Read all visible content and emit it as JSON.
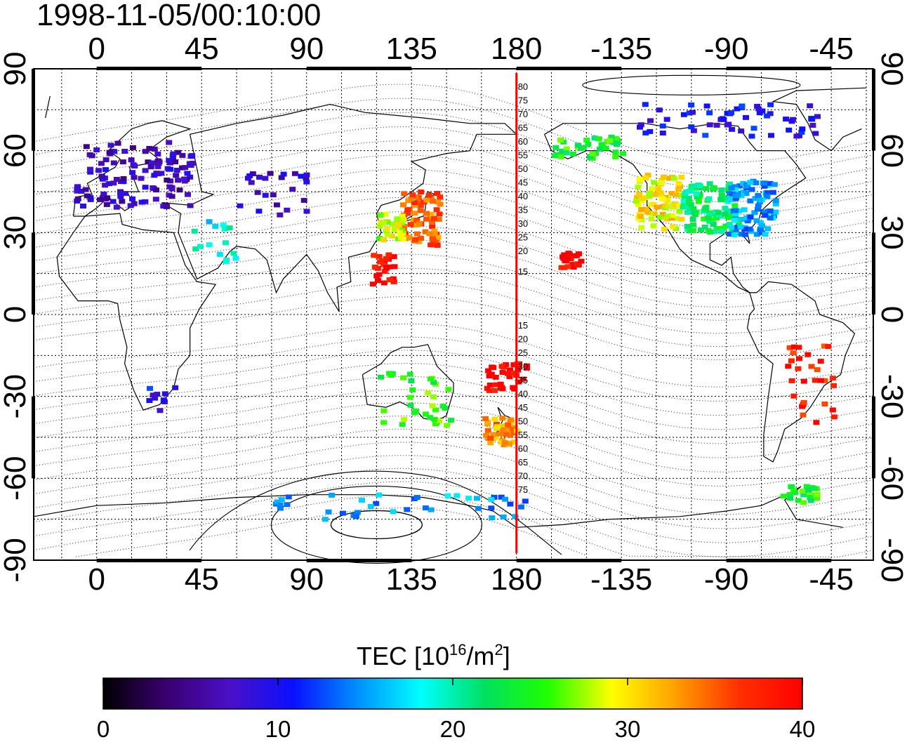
{
  "title": "1998-11-05/00:10:00",
  "colorbar": {
    "title_main": "TEC  [10",
    "title_sup1": "16",
    "title_mid": "/m",
    "title_sup2": "2",
    "title_end": "]",
    "min": 0,
    "max": 40,
    "ticks": [
      "0",
      "10",
      "20",
      "30",
      "40"
    ],
    "colors": [
      "#000000",
      "#3a0070",
      "#4a10c8",
      "#0a10ff",
      "#0090ff",
      "#00ffff",
      "#00e060",
      "#20ff00",
      "#ffff00",
      "#ffa000",
      "#ff3000",
      "#ff0000"
    ]
  },
  "axes": {
    "lon_ticks": [
      "0",
      "45",
      "90",
      "135",
      "180",
      "-135",
      "-90",
      "-45"
    ],
    "lat_ticks": [
      "90",
      "60",
      "30",
      "0",
      "-30",
      "-60",
      "-90"
    ],
    "meridian_marker_lon": 180,
    "meridian_marker_color": "#ff0000"
  },
  "mlat_labels": {
    "north": [
      "80",
      "75",
      "70",
      "65",
      "60",
      "55",
      "50",
      "45",
      "40",
      "35",
      "30",
      "25",
      "20",
      "15"
    ],
    "south": [
      "15",
      "20",
      "25",
      "30",
      "35",
      "40",
      "45",
      "50",
      "55",
      "60",
      "65",
      "70",
      "75"
    ]
  },
  "chart_data": {
    "type": "heatmap",
    "title": "1998-11-05/00:10:00",
    "xlabel": "",
    "ylabel": "",
    "colorbar_label": "TEC [10^16/m^2]",
    "value_range": [
      0,
      40
    ],
    "lon_range": [
      -27,
      333
    ],
    "lat_range": [
      -90,
      90
    ],
    "grid": true,
    "clusters": [
      {
        "name": "europe",
        "lon": 15,
        "lat": 52,
        "value": 7
      },
      {
        "name": "japan",
        "lon": 138,
        "lat": 36,
        "value": 35
      },
      {
        "name": "east-china-korea",
        "lon": 125,
        "lat": 33,
        "value": 28
      },
      {
        "name": "taiwan-philippines",
        "lon": 122,
        "lat": 18,
        "value": 40
      },
      {
        "name": "hawaii",
        "lon": -157,
        "lat": 21,
        "value": 40
      },
      {
        "name": "north-america-west",
        "lon": -120,
        "lat": 42,
        "value": 30
      },
      {
        "name": "north-america-central",
        "lon": -98,
        "lat": 40,
        "value": 22
      },
      {
        "name": "north-america-east",
        "lon": -80,
        "lat": 40,
        "value": 15
      },
      {
        "name": "alaska-canada-arctic",
        "lon": -90,
        "lat": 72,
        "value": 10
      },
      {
        "name": "alaska-south",
        "lon": -150,
        "lat": 62,
        "value": 24
      },
      {
        "name": "new-zealand",
        "lon": 172,
        "lat": -42,
        "value": 33
      },
      {
        "name": "fiji-pacific",
        "lon": 175,
        "lat": -22,
        "value": 40
      },
      {
        "name": "australia",
        "lon": 135,
        "lat": -30,
        "value": 25
      },
      {
        "name": "south-america",
        "lon": -55,
        "lat": -25,
        "value": 38
      },
      {
        "name": "antarctic-peninsula",
        "lon": -60,
        "lat": -65,
        "value": 24
      },
      {
        "name": "antarctica-east",
        "lon": 125,
        "lat": -70,
        "value": 15
      },
      {
        "name": "south-africa",
        "lon": 25,
        "lat": -30,
        "value": 10
      },
      {
        "name": "middle-east",
        "lon": 50,
        "lat": 28,
        "value": 18
      },
      {
        "name": "central-asia",
        "lon": 75,
        "lat": 45,
        "value": 8
      }
    ]
  }
}
